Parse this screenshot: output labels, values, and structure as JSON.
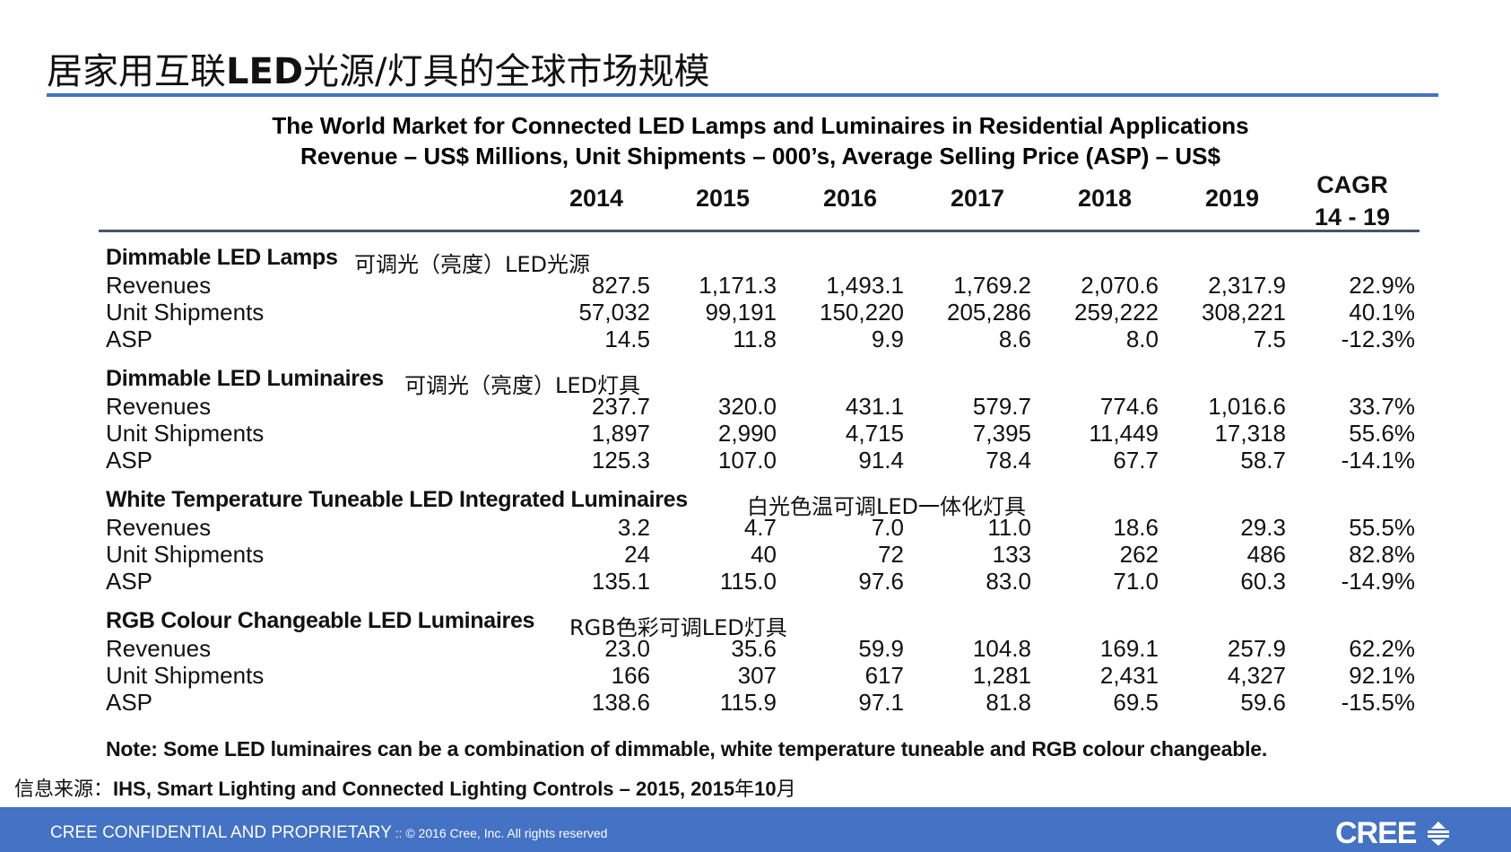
{
  "page": {
    "title_cn_a": "居家用互联",
    "title_latin": "LED",
    "title_cn_b": "光源/灯具的全球市场规模"
  },
  "table": {
    "caption_line1": "The World Market for Connected LED Lamps and Luminaires in Residential Applications",
    "caption_line2": "Revenue – US$ Millions, Unit Shipments – 000’s, Average Selling Price (ASP) – US$",
    "years": [
      "2014",
      "2015",
      "2016",
      "2017",
      "2018",
      "2019"
    ],
    "cagr_line1": "CAGR",
    "cagr_line2": "14 - 19",
    "sections": [
      {
        "title": "Dimmable LED Lamps",
        "title_cn": "可调光（亮度）LED光源",
        "rows": [
          {
            "label": "Revenues",
            "values": [
              "827.5",
              "1,171.3",
              "1,493.1",
              "1,769.2",
              "2,070.6",
              "2,317.9"
            ],
            "cagr": "22.9%"
          },
          {
            "label": "Unit Shipments",
            "values": [
              "57,032",
              "99,191",
              "150,220",
              "205,286",
              "259,222",
              "308,221"
            ],
            "cagr": "40.1%"
          },
          {
            "label": "ASP",
            "values": [
              "14.5",
              "11.8",
              "9.9",
              "8.6",
              "8.0",
              "7.5"
            ],
            "cagr": "-12.3%"
          }
        ]
      },
      {
        "title": "Dimmable LED Luminaires",
        "title_cn": "可调光（亮度）LED灯具",
        "rows": [
          {
            "label": "Revenues",
            "values": [
              "237.7",
              "320.0",
              "431.1",
              "579.7",
              "774.6",
              "1,016.6"
            ],
            "cagr": "33.7%"
          },
          {
            "label": "Unit Shipments",
            "values": [
              "1,897",
              "2,990",
              "4,715",
              "7,395",
              "11,449",
              "17,318"
            ],
            "cagr": "55.6%"
          },
          {
            "label": "ASP",
            "values": [
              "125.3",
              "107.0",
              "91.4",
              "78.4",
              "67.7",
              "58.7"
            ],
            "cagr": "-14.1%"
          }
        ]
      },
      {
        "title": "White Temperature Tuneable LED Integrated Luminaires",
        "title_cn": "白光色温可调LED一体化灯具",
        "rows": [
          {
            "label": "Revenues",
            "values": [
              "3.2",
              "4.7",
              "7.0",
              "11.0",
              "18.6",
              "29.3"
            ],
            "cagr": "55.5%"
          },
          {
            "label": "Unit Shipments",
            "values": [
              "24",
              "40",
              "72",
              "133",
              "262",
              "486"
            ],
            "cagr": "82.8%"
          },
          {
            "label": "ASP",
            "values": [
              "135.1",
              "115.0",
              "97.6",
              "83.0",
              "71.0",
              "60.3"
            ],
            "cagr": "-14.9%"
          }
        ]
      },
      {
        "title": "RGB Colour Changeable LED Luminaires",
        "title_cn": "RGB色彩可调LED灯具",
        "rows": [
          {
            "label": "Revenues",
            "values": [
              "23.0",
              "35.6",
              "59.9",
              "104.8",
              "169.1",
              "257.9"
            ],
            "cagr": "62.2%"
          },
          {
            "label": "Unit Shipments",
            "values": [
              "166",
              "307",
              "617",
              "1,281",
              "2,431",
              "4,327"
            ],
            "cagr": "92.1%"
          },
          {
            "label": "ASP",
            "values": [
              "138.6",
              "115.9",
              "97.1",
              "81.8",
              "69.5",
              "59.6"
            ],
            "cagr": "-15.5%"
          }
        ]
      }
    ],
    "note": "Note: Some LED luminaires can be a combination of dimmable, white temperature tuneable and RGB colour changeable."
  },
  "source": {
    "prefix_cn": "信息来源：",
    "text_a": "IHS, Smart Lighting and Connected Lighting Controls – 2015,  2015",
    "cn_year": "年",
    "text_b": "10",
    "cn_month": "月"
  },
  "footer": {
    "confidential": "CREE CONFIDENTIAL AND PROPRIETARY",
    "copyright": " :: © 2016 Cree, Inc. All rights reserved",
    "logo": "CREE",
    "brand_color": "#4472c4"
  }
}
